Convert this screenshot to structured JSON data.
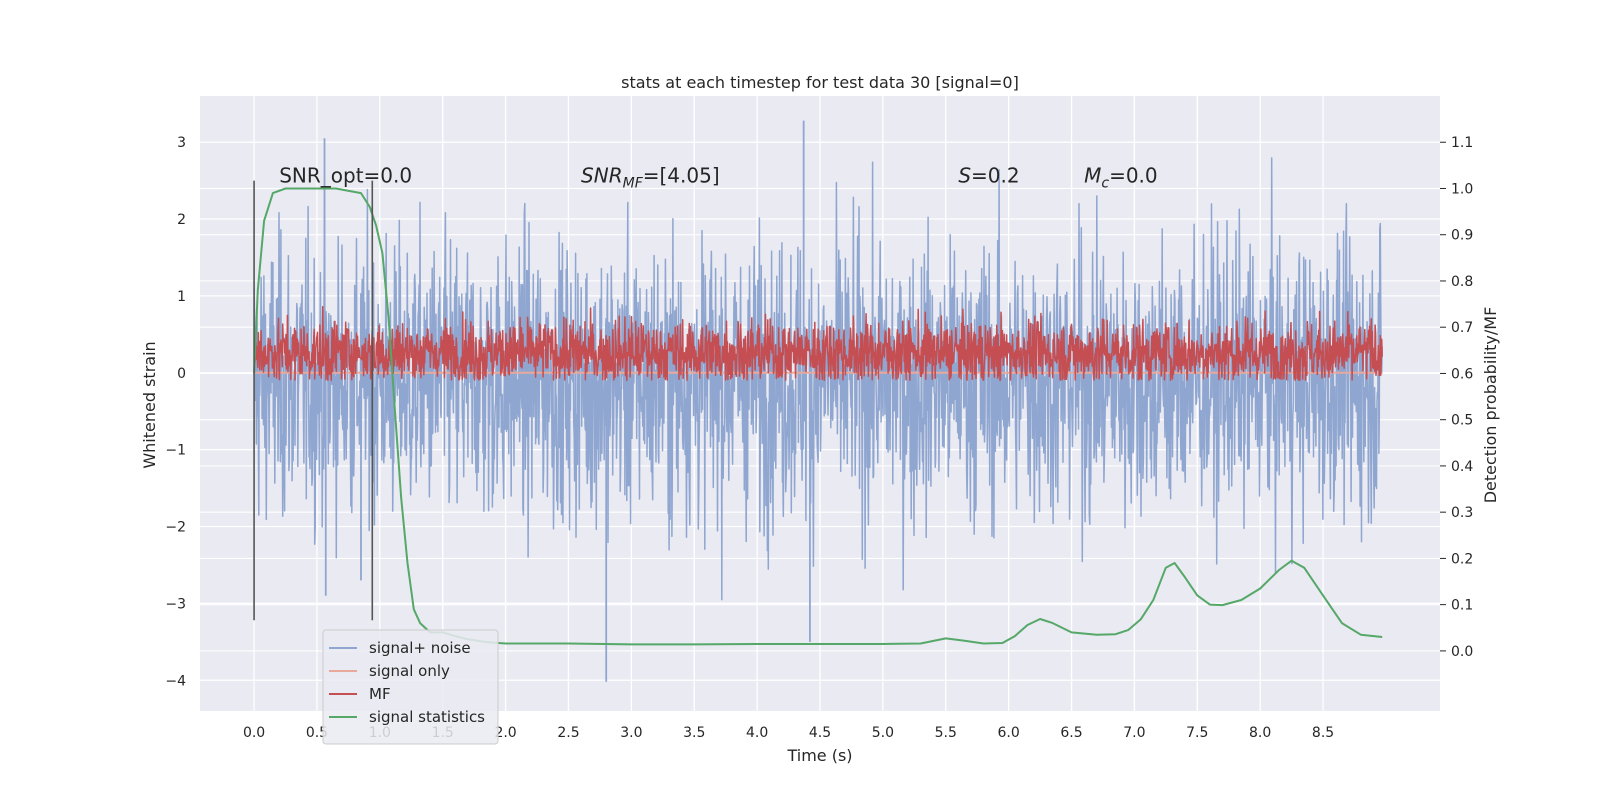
{
  "chart_data": {
    "type": "line",
    "title": "stats at each timestep for test data 30 [signal=0]",
    "xlabel": "Time (s)",
    "ylabel": "Whitened strain",
    "y2label": "Detection probability/MF",
    "xlim": [
      -0.43,
      9.43
    ],
    "ylim": [
      -4.4,
      3.6
    ],
    "y2lim": [
      -0.13,
      1.2
    ],
    "x_ticks": [
      "0.0",
      "0.5",
      "1.0",
      "1.5",
      "2.0",
      "2.5",
      "3.0",
      "3.5",
      "4.0",
      "4.5",
      "5.0",
      "5.5",
      "6.0",
      "6.5",
      "7.0",
      "7.5",
      "8.0",
      "8.5"
    ],
    "y_ticks": [
      "3",
      "2",
      "1",
      "0",
      "−1",
      "−2",
      "−3",
      "−4"
    ],
    "y2_ticks": [
      "1.1",
      "1.0",
      "0.9",
      "0.8",
      "0.7",
      "0.6",
      "0.5",
      "0.4",
      "0.3",
      "0.2",
      "0.1",
      "0.0"
    ],
    "grid": true,
    "legend_position": "lower-left",
    "annotations": [
      {
        "label": "SNR_opt=0.0",
        "x": 0.2,
        "y": 2.55
      },
      {
        "label": "SNR",
        "sub": "MF",
        "rest": "=[4.05]",
        "italic": true,
        "x": 2.6,
        "y": 2.55
      },
      {
        "label": "S",
        "sub": "",
        "rest": "=0.2",
        "italic": true,
        "x": 5.6,
        "y": 2.55
      },
      {
        "label": "M",
        "sub": "c",
        "rest": "=0.0",
        "italic": true,
        "x": 6.6,
        "y": 2.55
      }
    ],
    "vlines": [
      0.0,
      0.94
    ],
    "series": [
      {
        "name": "signal+ noise",
        "color": "#8fa6d0",
        "axis": "left",
        "style": "noise",
        "x_range": [
          0.0,
          8.97
        ],
        "center": -0.1,
        "sigma": 0.9,
        "spikes": [
          [
            0.56,
            3.05
          ],
          [
            4.37,
            3.28
          ],
          [
            2.8,
            -4.02
          ],
          [
            4.42,
            -3.5
          ],
          [
            0.57,
            -2.9
          ],
          [
            0.85,
            -2.7
          ]
        ]
      },
      {
        "name": "signal only",
        "color": "#e8a99a",
        "axis": "left",
        "x": [
          0.0,
          8.97
        ],
        "y": [
          0.0,
          0.0
        ]
      },
      {
        "name": "MF",
        "color": "#c44e52",
        "axis": "right",
        "style": "noise",
        "x_range": [
          0.0,
          8.97
        ],
        "center": 0.645,
        "sigma": 0.035,
        "baseline": 0.585
      },
      {
        "name": "signal statistics",
        "color": "#55a868",
        "axis": "right",
        "x": [
          0.0,
          0.03,
          0.08,
          0.15,
          0.25,
          0.45,
          0.65,
          0.85,
          0.92,
          0.97,
          1.02,
          1.07,
          1.12,
          1.17,
          1.22,
          1.27,
          1.32,
          1.4,
          1.5,
          1.6,
          1.7,
          1.85,
          2.0,
          2.2,
          2.5,
          3.0,
          3.5,
          4.0,
          4.5,
          5.0,
          5.3,
          5.5,
          5.65,
          5.8,
          5.95,
          6.05,
          6.15,
          6.25,
          6.35,
          6.5,
          6.7,
          6.85,
          6.95,
          7.05,
          7.15,
          7.25,
          7.32,
          7.4,
          7.5,
          7.6,
          7.7,
          7.85,
          8.0,
          8.15,
          8.25,
          8.35,
          8.5,
          8.65,
          8.8,
          8.97
        ],
        "y": [
          0.6,
          0.78,
          0.93,
          0.99,
          1.0,
          1.0,
          1.0,
          0.99,
          0.96,
          0.92,
          0.86,
          0.72,
          0.52,
          0.33,
          0.19,
          0.09,
          0.06,
          0.04,
          0.04,
          0.032,
          0.025,
          0.019,
          0.016,
          0.016,
          0.016,
          0.014,
          0.014,
          0.015,
          0.015,
          0.015,
          0.016,
          0.027,
          0.022,
          0.016,
          0.017,
          0.032,
          0.056,
          0.069,
          0.06,
          0.04,
          0.035,
          0.036,
          0.045,
          0.068,
          0.11,
          0.18,
          0.19,
          0.16,
          0.12,
          0.1,
          0.099,
          0.11,
          0.135,
          0.175,
          0.195,
          0.18,
          0.12,
          0.06,
          0.035,
          0.03
        ]
      }
    ]
  }
}
